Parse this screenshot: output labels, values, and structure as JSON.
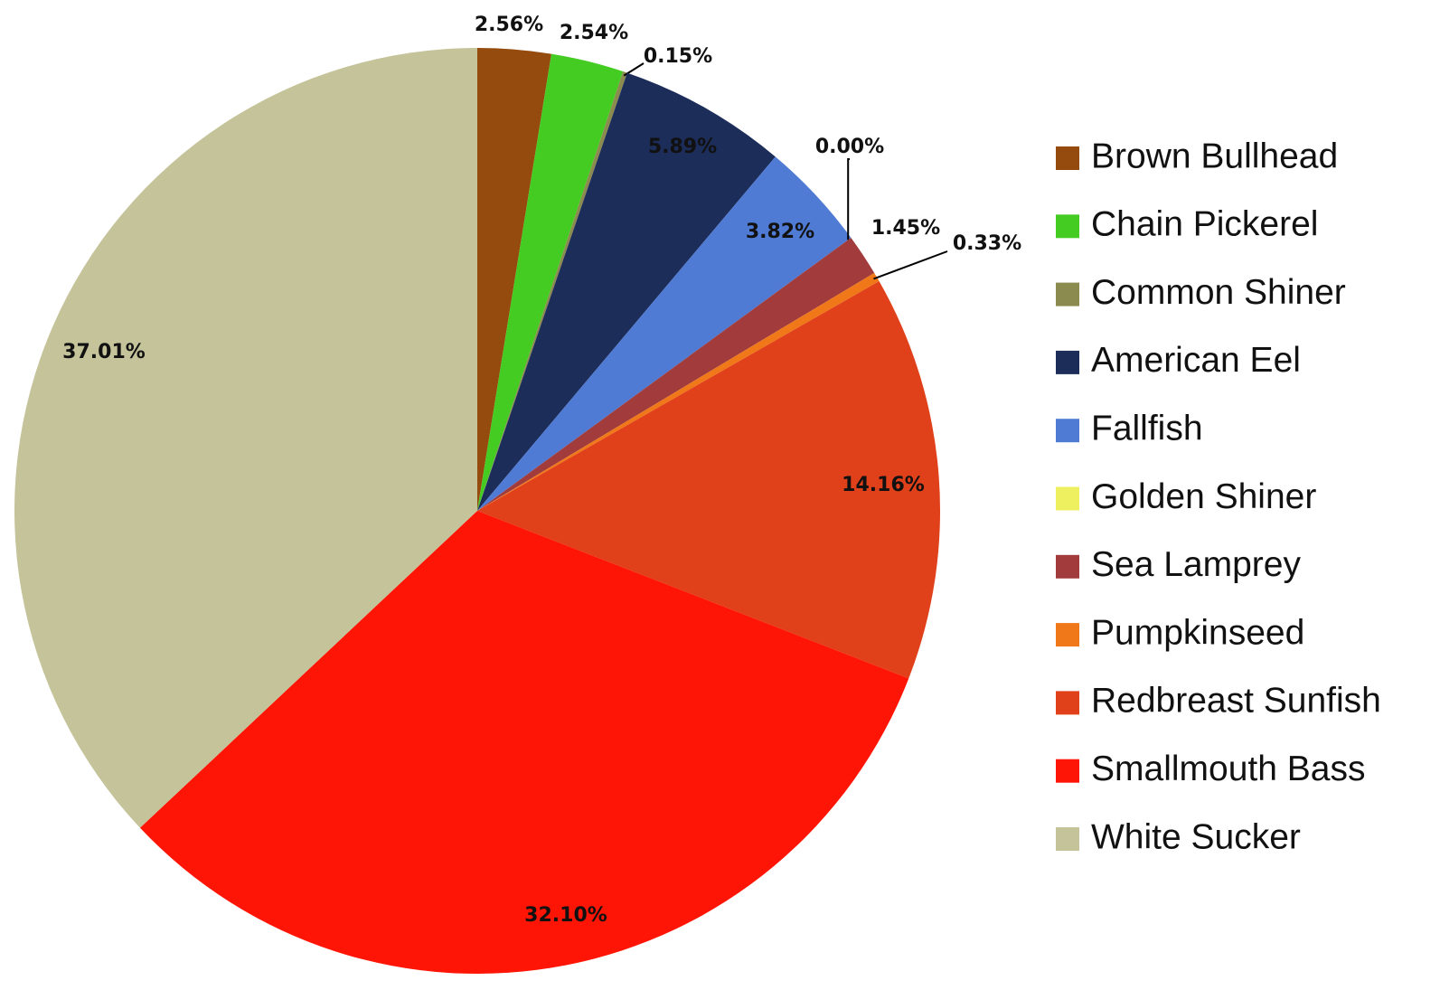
{
  "chart_data": {
    "type": "pie",
    "categories": [
      "Brown Bullhead",
      "Chain Pickerel",
      "Common Shiner",
      "American Eel",
      "Fallfish",
      "Golden Shiner",
      "Sea Lamprey",
      "Pumpkinseed",
      "Redbreast Sunfish",
      "Smallmouth Bass",
      "White Sucker"
    ],
    "values": [
      2.56,
      2.54,
      0.15,
      5.89,
      3.82,
      0,
      1.45,
      0.33,
      14.16,
      32.1,
      37.01
    ],
    "value_labels": [
      "2.56%",
      "2.54%",
      "0.15%",
      "5.89%",
      "3.82%",
      "0.00%",
      "1.45%",
      "0.33%",
      "14.16%",
      "32.10%",
      "37.01%"
    ],
    "colors": [
      "#954a0e",
      "#44cc22",
      "#8b8b50",
      "#1c2d5a",
      "#4f7bd4",
      "#eef060",
      "#a23c3c",
      "#f07818",
      "#e0401a",
      "#ff1505",
      "#c5c39a"
    ],
    "legend": "right"
  }
}
